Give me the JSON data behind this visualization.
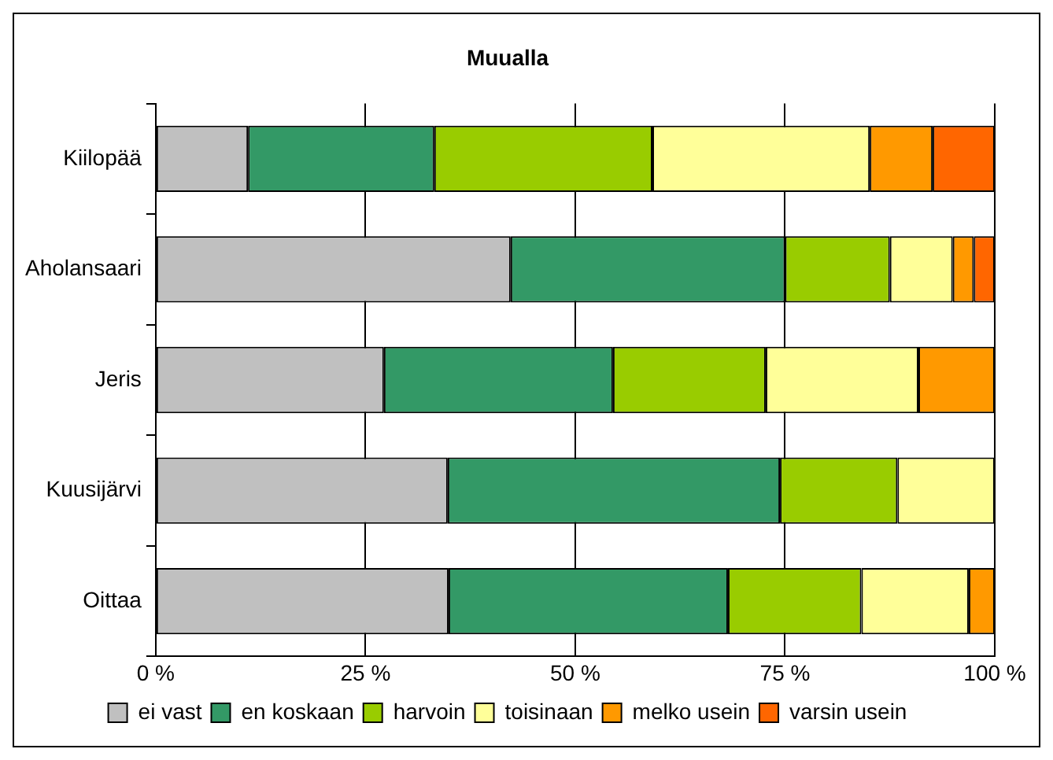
{
  "chart_data": {
    "type": "bar",
    "orientation": "horizontal",
    "stacked": true,
    "title": "Muualla",
    "categories": [
      "Kiilopää",
      "Aholansaari",
      "Jeris",
      "Kuusijärvi",
      "Oittaa"
    ],
    "series": [
      {
        "name": "ei vast",
        "color": "#c0c0c0",
        "values": [
          11.0,
          42.3,
          27.2,
          34.8,
          34.9
        ]
      },
      {
        "name": "en koskaan",
        "color": "#339966",
        "values": [
          22.2,
          32.7,
          27.3,
          39.6,
          33.3
        ]
      },
      {
        "name": "harvoin",
        "color": "#99cc00",
        "values": [
          26.0,
          12.5,
          18.2,
          14.0,
          15.9
        ]
      },
      {
        "name": "toisinaan",
        "color": "#ffff99",
        "values": [
          25.9,
          7.5,
          18.2,
          11.6,
          12.8
        ]
      },
      {
        "name": "melko usein",
        "color": "#ff9900",
        "values": [
          7.5,
          2.5,
          9.1,
          0,
          3.1
        ]
      },
      {
        "name": "varsin usein",
        "color": "#ff6600",
        "values": [
          7.4,
          2.5,
          0,
          0,
          0
        ]
      }
    ],
    "xlim": [
      0,
      100
    ],
    "xticks": [
      {
        "value": 0,
        "label": "0 %"
      },
      {
        "value": 25,
        "label": "25 %"
      },
      {
        "value": 50,
        "label": "50 %"
      },
      {
        "value": 75,
        "label": "75 %"
      },
      {
        "value": 100,
        "label": "100 %"
      }
    ],
    "grid": "x",
    "legend": "bottom"
  }
}
